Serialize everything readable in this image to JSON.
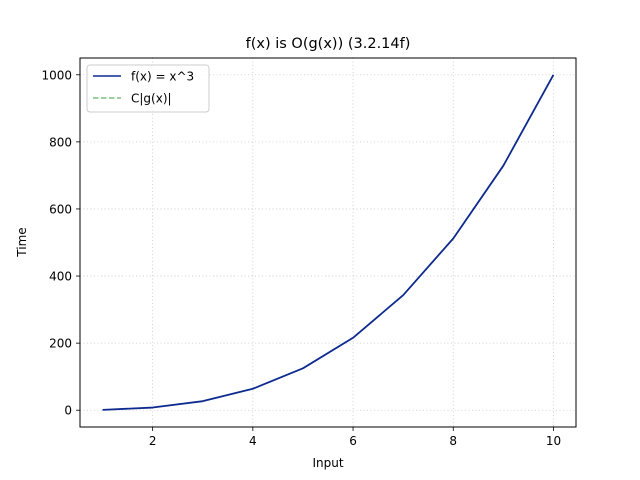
{
  "chart_data": {
    "type": "line",
    "title": "f(x) is O(g(x)) (3.2.14f)",
    "xlabel": "Input",
    "ylabel": "Time",
    "xlim": [
      0.55,
      10.45
    ],
    "ylim": [
      -50,
      1050
    ],
    "x_ticks": [
      2,
      4,
      6,
      8,
      10
    ],
    "y_ticks": [
      0,
      200,
      400,
      600,
      800,
      1000
    ],
    "grid": true,
    "legend_position": "top-left",
    "series": [
      {
        "name": "f(x) = x^3",
        "color": "#0d2a8f",
        "line_style": "solid",
        "x": [
          1,
          2,
          3,
          4,
          5,
          6,
          7,
          8,
          9,
          10
        ],
        "y": [
          1,
          8,
          27,
          64,
          125,
          216,
          343,
          512,
          729,
          1000
        ]
      },
      {
        "name": "C|g(x)|",
        "color": "#7fbf7f",
        "line_style": "dashed",
        "x": [],
        "y": []
      }
    ]
  }
}
